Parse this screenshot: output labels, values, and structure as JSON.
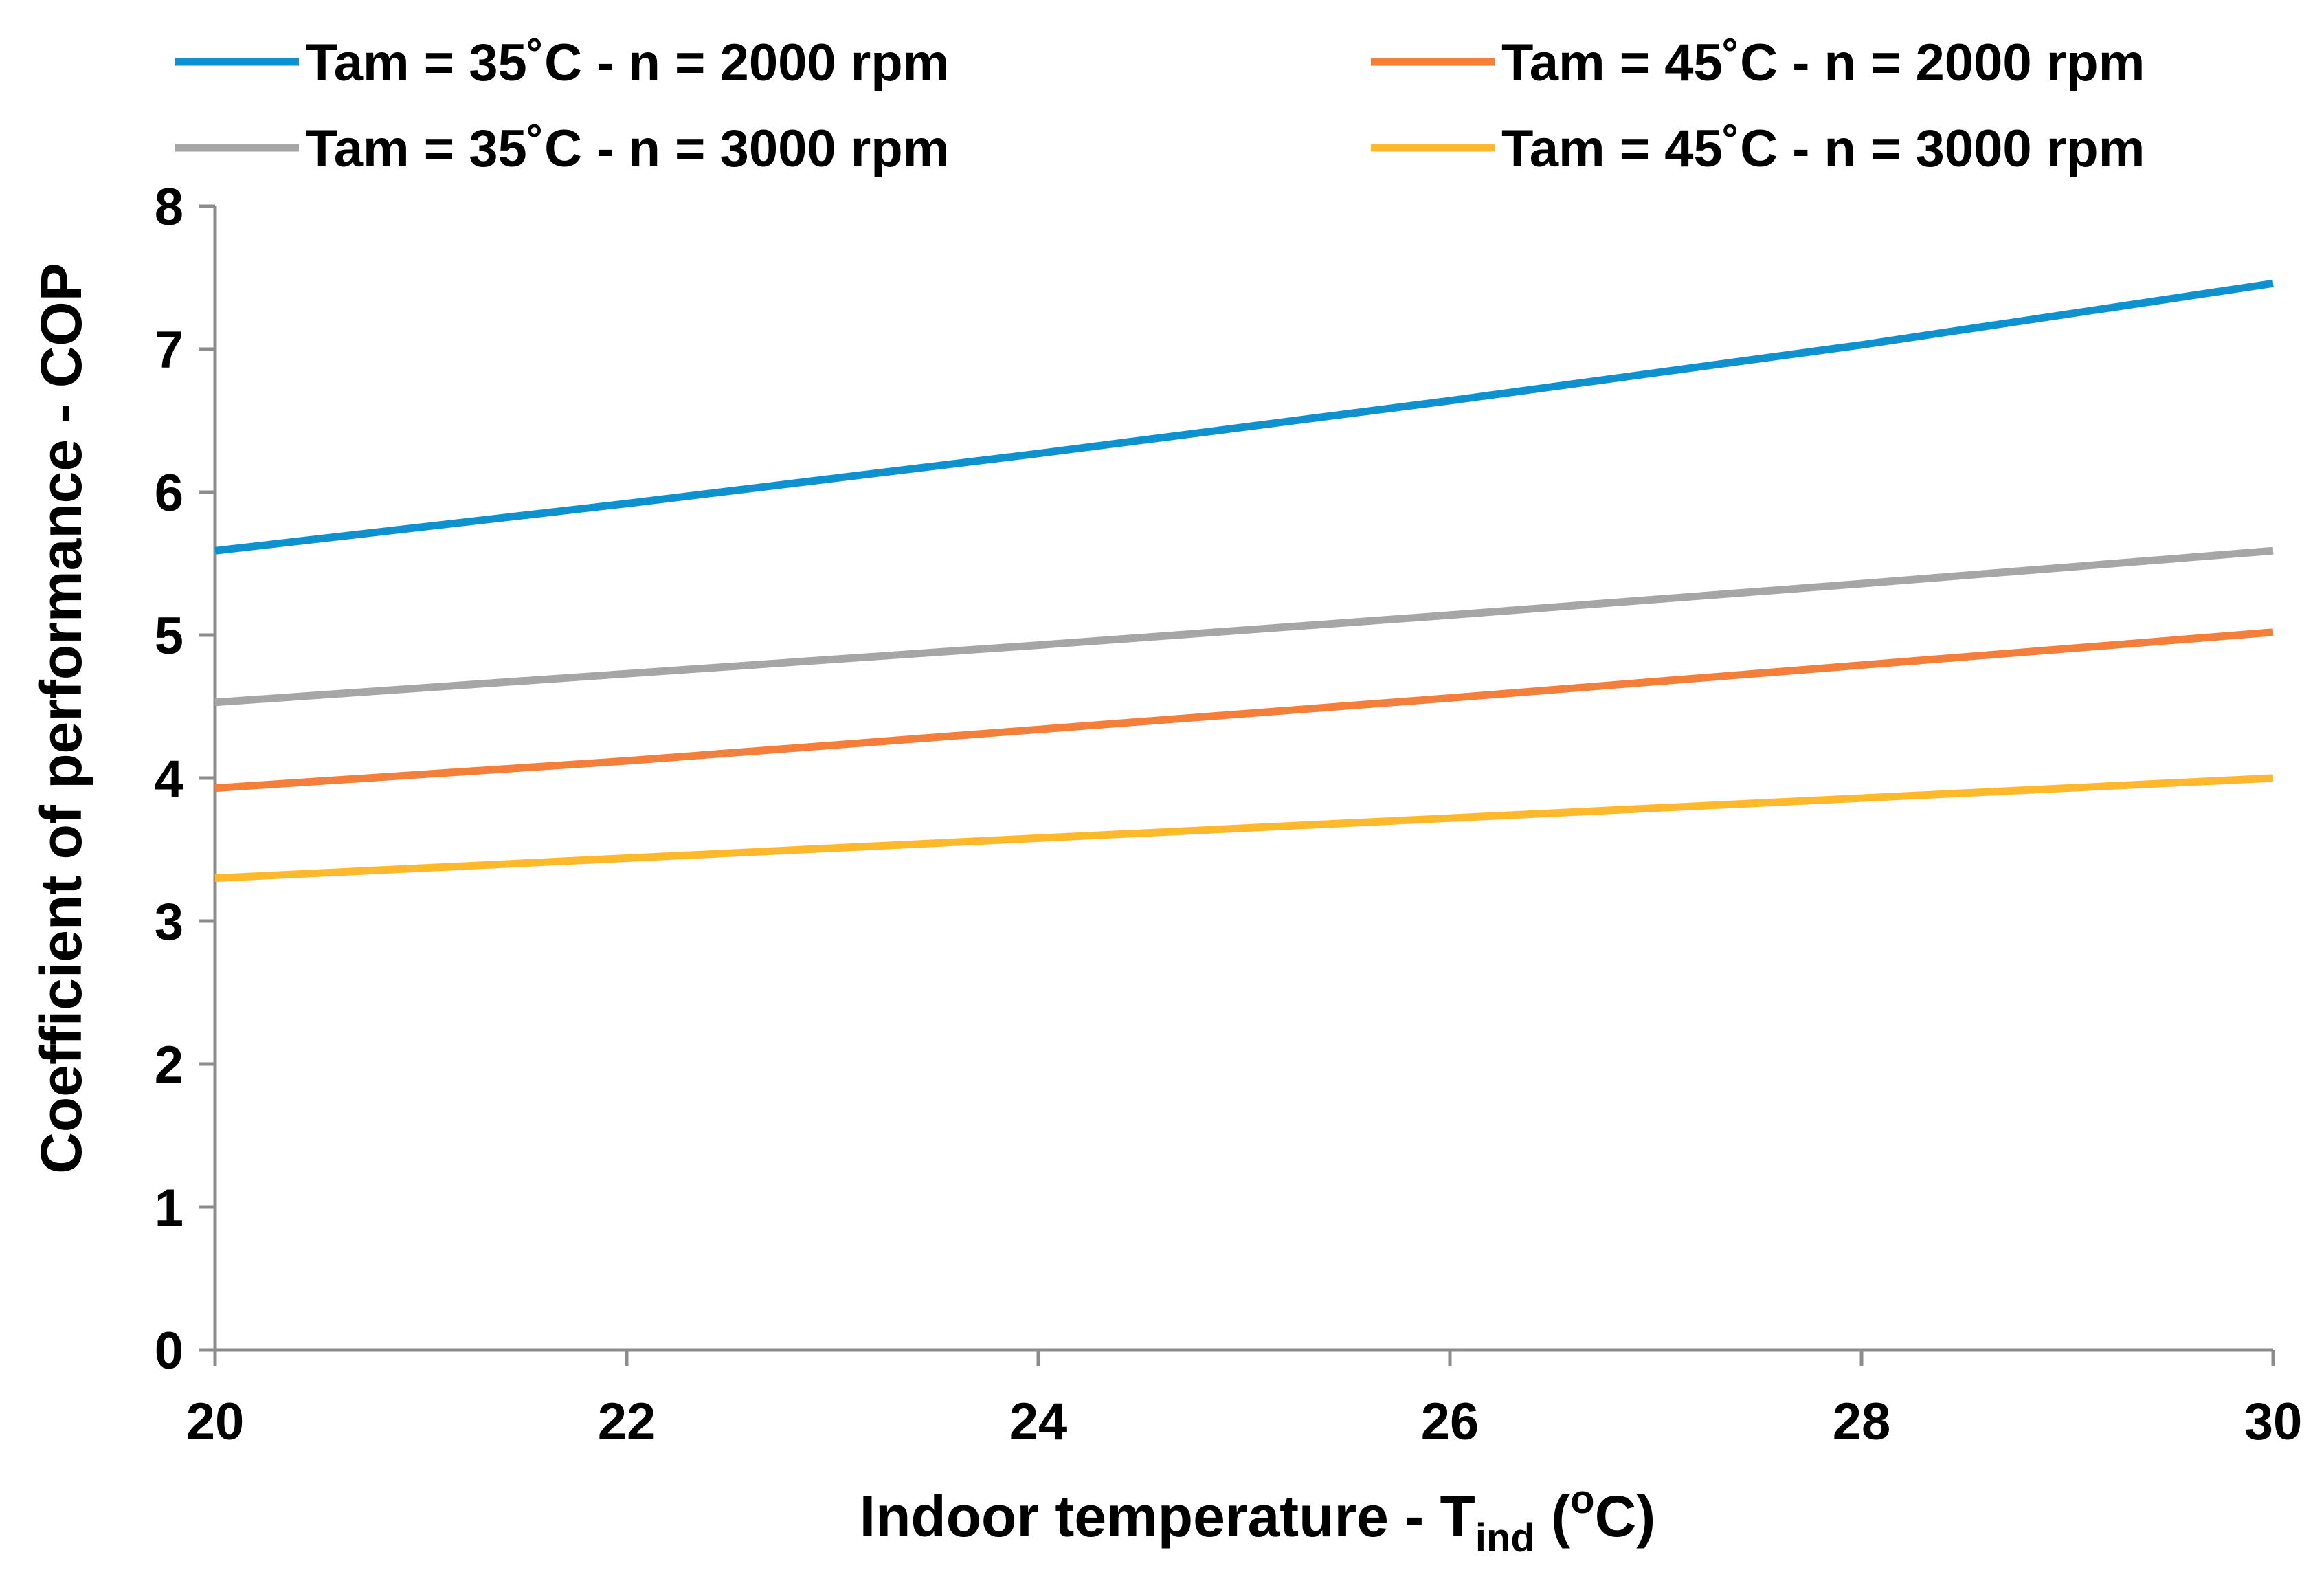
{
  "chart_data": {
    "type": "line",
    "title": "",
    "xlabel": {
      "main": "Indoor temperature - T",
      "sub": "ind",
      "open": " (",
      "sup": "o",
      "close": "C)"
    },
    "ylabel": "Coefficient of performance - COP",
    "xlim": [
      20,
      30
    ],
    "ylim": [
      0,
      8
    ],
    "xticks": [
      20,
      22,
      24,
      26,
      28,
      30
    ],
    "yticks": [
      0,
      1,
      2,
      3,
      4,
      5,
      6,
      7,
      8
    ],
    "grid": false,
    "legend_position": "top",
    "x": [
      20,
      22,
      24,
      26,
      28,
      30
    ],
    "series": [
      {
        "name": "Tam = 35˚C - n = 2000 rpm",
        "color": "#0D92CF",
        "values": [
          5.59,
          5.92,
          6.27,
          6.64,
          7.03,
          7.46
        ]
      },
      {
        "name": "Tam = 45˚C - n = 2000 rpm",
        "color": "#F37F3B",
        "values": [
          3.93,
          4.12,
          4.34,
          4.56,
          4.79,
          5.02
        ]
      },
      {
        "name": "Tam = 35˚C - n = 3000 rpm",
        "color": "#A6A6A6",
        "values": [
          4.53,
          4.73,
          4.93,
          5.14,
          5.36,
          5.59
        ]
      },
      {
        "name": "Tam = 45˚C - n = 3000 rpm",
        "color": "#FDB92B",
        "values": [
          3.3,
          3.44,
          3.58,
          3.72,
          3.86,
          4.0
        ]
      }
    ]
  }
}
